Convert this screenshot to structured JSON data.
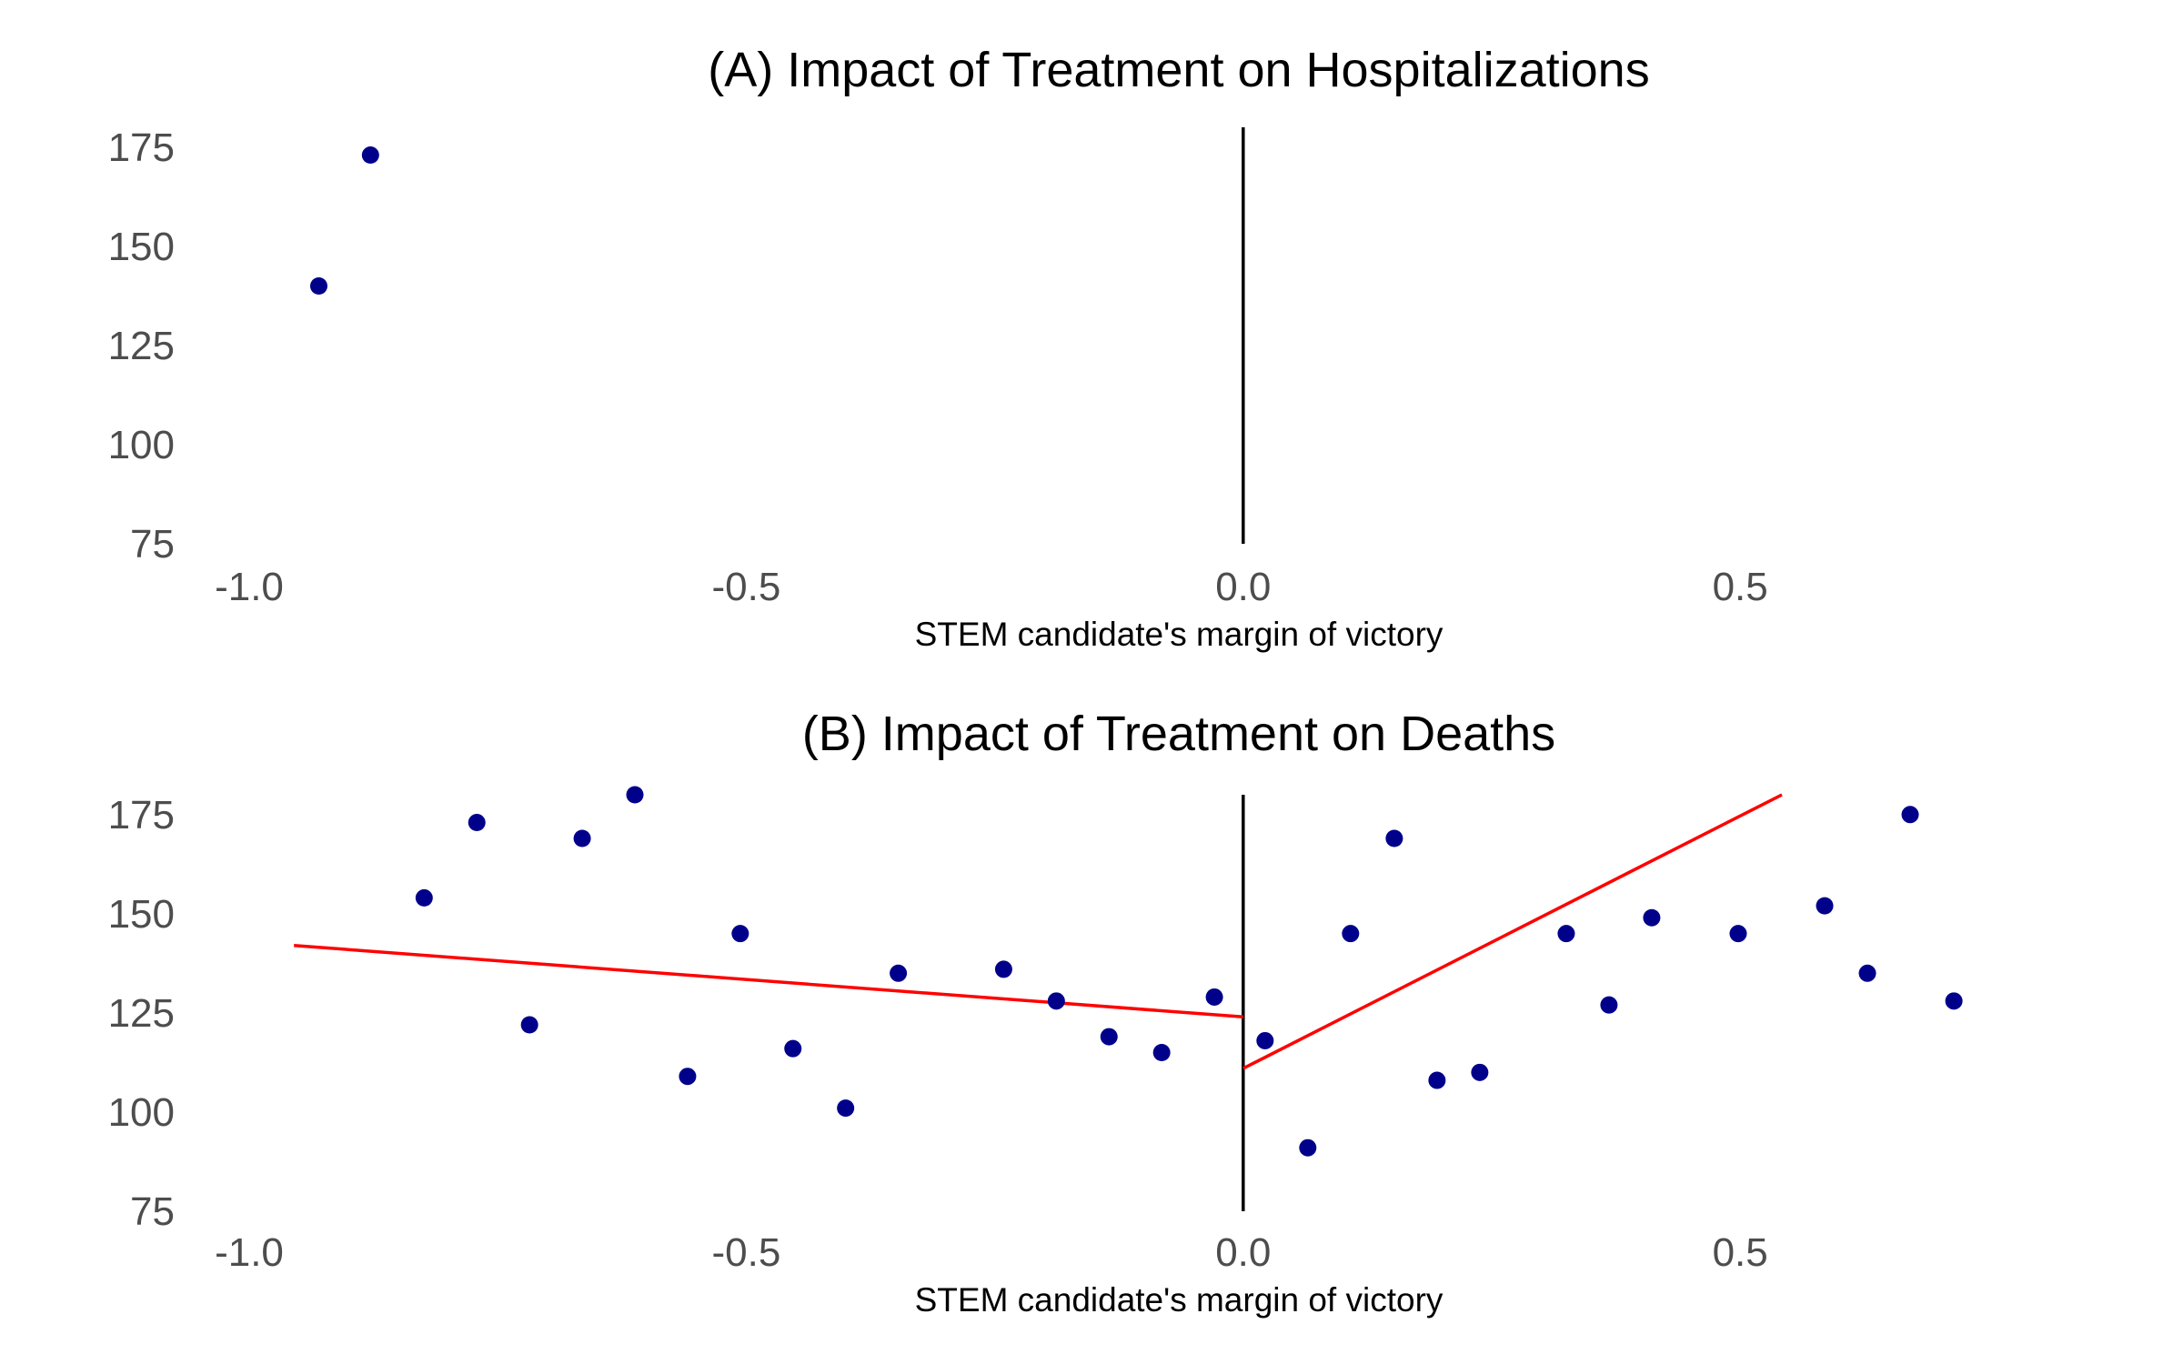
{
  "chart_data": [
    {
      "type": "scatter",
      "title": "(A) Impact of Treatment on Hospitalizations",
      "xlabel": "STEM candidate's margin of victory",
      "ylabel": "",
      "xlim": [
        -1.0,
        0.8
      ],
      "ylim": [
        75,
        180
      ],
      "xticks": [
        "-1.0",
        "-0.5",
        "0.0",
        "0.5"
      ],
      "yticks": [
        "75",
        "100",
        "125",
        "150",
        "175"
      ],
      "grid": false,
      "cutoff": 0.0,
      "point_color": "#00008B",
      "cutoff_color": "#000000",
      "points": [
        {
          "x": -0.93,
          "y": 140
        },
        {
          "x": -0.878,
          "y": 173
        }
      ],
      "fit_lines": []
    },
    {
      "type": "scatter",
      "title": "(B) Impact of Treatment on Deaths",
      "xlabel": "STEM candidate's margin of victory",
      "ylabel": "",
      "xlim": [
        -1.0,
        0.8
      ],
      "ylim": [
        75,
        180
      ],
      "xticks": [
        "-1.0",
        "-0.5",
        "0.0",
        "0.5"
      ],
      "yticks": [
        "75",
        "100",
        "125",
        "150",
        "175"
      ],
      "grid": false,
      "cutoff": 0.0,
      "point_color": "#00008B",
      "cutoff_color": "#000000",
      "fit_color": "#FF0000",
      "points": [
        {
          "x": -0.824,
          "y": 154
        },
        {
          "x": -0.771,
          "y": 173
        },
        {
          "x": -0.718,
          "y": 122
        },
        {
          "x": -0.665,
          "y": 169
        },
        {
          "x": -0.612,
          "y": 180
        },
        {
          "x": -0.559,
          "y": 109
        },
        {
          "x": -0.506,
          "y": 145
        },
        {
          "x": -0.453,
          "y": 116
        },
        {
          "x": -0.4,
          "y": 101
        },
        {
          "x": -0.347,
          "y": 135
        },
        {
          "x": -0.241,
          "y": 136
        },
        {
          "x": -0.188,
          "y": 128
        },
        {
          "x": -0.135,
          "y": 119
        },
        {
          "x": -0.082,
          "y": 115
        },
        {
          "x": -0.029,
          "y": 129
        },
        {
          "x": 0.022,
          "y": 118
        },
        {
          "x": 0.065,
          "y": 91
        },
        {
          "x": 0.108,
          "y": 145
        },
        {
          "x": 0.152,
          "y": 169
        },
        {
          "x": 0.195,
          "y": 108
        },
        {
          "x": 0.238,
          "y": 110
        },
        {
          "x": 0.325,
          "y": 145
        },
        {
          "x": 0.368,
          "y": 127
        },
        {
          "x": 0.411,
          "y": 149
        },
        {
          "x": 0.498,
          "y": 145
        },
        {
          "x": 0.585,
          "y": 152
        },
        {
          "x": 0.628,
          "y": 135
        },
        {
          "x": 0.671,
          "y": 175
        },
        {
          "x": 0.715,
          "y": 128
        }
      ],
      "fit_lines": [
        {
          "x": [
            -0.955,
            0.0
          ],
          "y": [
            142,
            124
          ]
        },
        {
          "x": [
            0.0,
            0.542
          ],
          "y": [
            111,
            180
          ]
        }
      ]
    }
  ]
}
